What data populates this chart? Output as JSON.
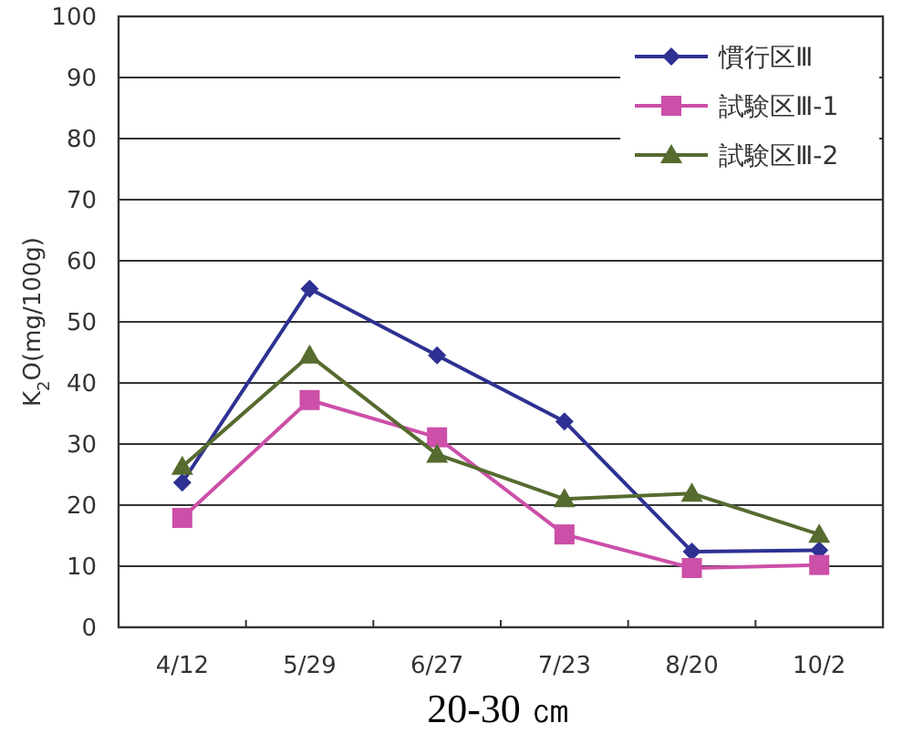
{
  "chart_data": {
    "type": "line",
    "xlabel": "20-30 ㎝",
    "ylabel": "K$_{2}$O(mg/100g)",
    "categories": [
      "4/12",
      "5/29",
      "6/27",
      "7/23",
      "8/20",
      "10/2"
    ],
    "series": [
      {
        "name": "慣行区Ⅲ",
        "color": "#2e3192",
        "marker": "diamond",
        "values": [
          23.7,
          55.4,
          44.5,
          33.7,
          12.4,
          12.6
        ]
      },
      {
        "name": "試験区Ⅲ-1",
        "color": "#cc4fa8",
        "marker": "square",
        "values": [
          17.9,
          37.2,
          31.1,
          15.2,
          9.7,
          10.2
        ]
      },
      {
        "name": "試験区Ⅲ-2",
        "color": "#566b2f",
        "marker": "triangle",
        "values": [
          26.3,
          44.5,
          28.3,
          21.0,
          21.9,
          15.2
        ]
      }
    ],
    "ylim": [
      0,
      100
    ],
    "yticks": [
      0,
      10,
      20,
      30,
      40,
      50,
      60,
      70,
      80,
      90,
      100
    ],
    "grid": "y",
    "legend": "top right",
    "line_style": "solid"
  }
}
